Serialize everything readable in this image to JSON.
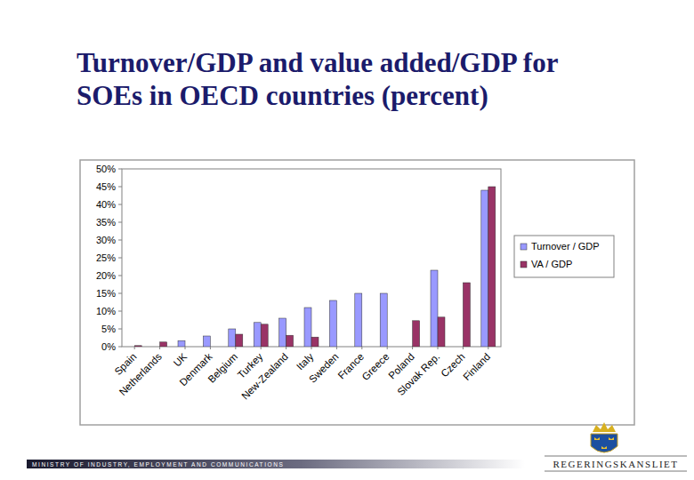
{
  "chart_data": {
    "type": "bar",
    "title": "Turnover/GDP and value added/GDP for SOEs in OECD countries (percent)",
    "categories": [
      "Spain",
      "Netherlands",
      "UK",
      "Denmark",
      "Belgium",
      "Turkey",
      "New-Zealand",
      "Italy",
      "Sweden",
      "France",
      "Greece",
      "Poland",
      "Slovak Rep.",
      "Czech",
      "Finland"
    ],
    "series": [
      {
        "name": "Turnover / GDP",
        "color": "#9999ff",
        "values": [
          null,
          null,
          1.7,
          3,
          5,
          6.8,
          8,
          11,
          13,
          15,
          15,
          null,
          21.5,
          null,
          44
        ]
      },
      {
        "name": "VA / GDP",
        "color": "#993366",
        "values": [
          0.3,
          1.3,
          null,
          null,
          3.5,
          6.3,
          3.2,
          2.7,
          null,
          null,
          null,
          7.3,
          8.3,
          18,
          45
        ]
      }
    ],
    "ylim": [
      0,
      50
    ],
    "yticks": [
      {
        "value": 0,
        "label": "0%"
      },
      {
        "value": 5,
        "label": "5%"
      },
      {
        "value": 10,
        "label": "10%"
      },
      {
        "value": 15,
        "label": "15%"
      },
      {
        "value": 20,
        "label": "20%"
      },
      {
        "value": 25,
        "label": "25%"
      },
      {
        "value": 30,
        "label": "30%"
      },
      {
        "value": 35,
        "label": "35%"
      },
      {
        "value": 40,
        "label": "40%"
      },
      {
        "value": 45,
        "label": "45%"
      },
      {
        "value": 50,
        "label": "50%"
      }
    ],
    "grid": false,
    "legend": "right"
  },
  "footer": {
    "ministry": "MINISTRY OF INDUSTRY, EMPLOYMENT AND COMMUNICATIONS",
    "logo": "REGERINGSKANSLIET"
  }
}
